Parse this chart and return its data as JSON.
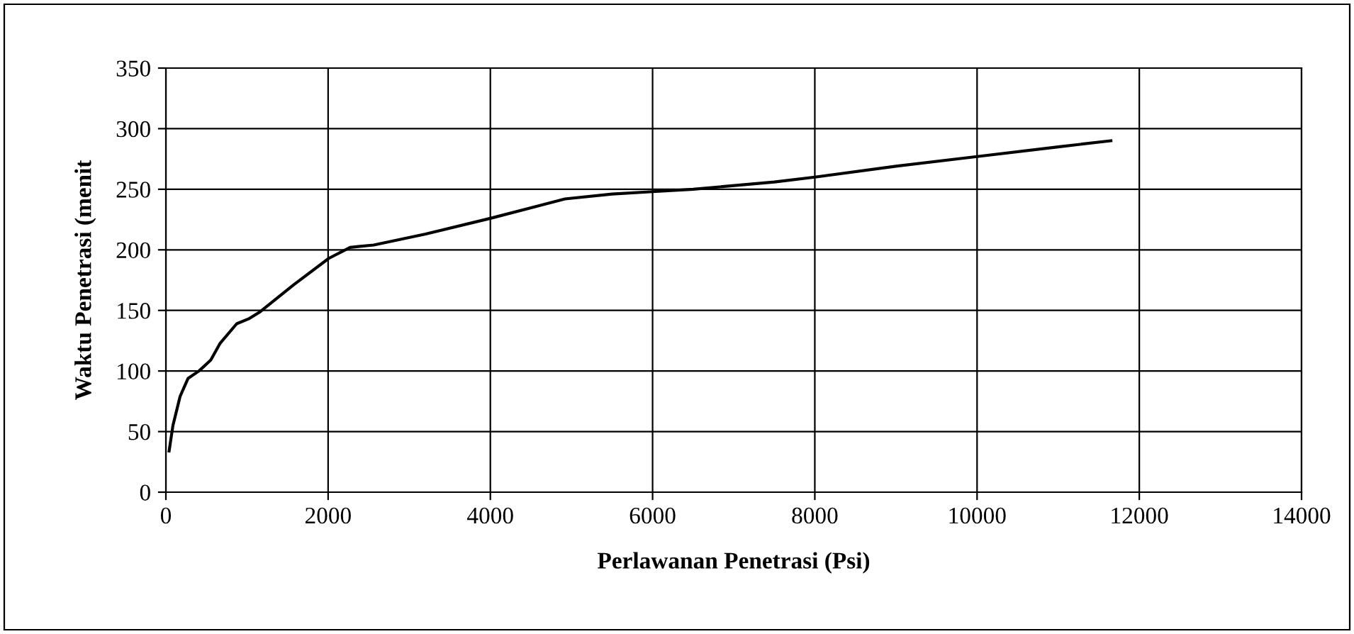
{
  "chart_data": {
    "type": "line",
    "xlabel": "Perlawanan Penetrasi (Psi)",
    "ylabel": "Waktu Penetrasi (menit",
    "series": [
      {
        "color": "#000000",
        "x": [
          40,
          87,
          175,
          274,
          408,
          553,
          670,
          873,
          1019,
          1164,
          1572,
          2009,
          2271,
          2562,
          3202,
          4000,
          4920,
          5500,
          6000,
          6500,
          7500,
          8000,
          9000,
          10000,
          11000,
          11650
        ],
        "values": [
          34,
          55,
          79,
          94,
          100,
          109,
          123,
          139,
          143,
          149,
          171,
          193,
          202,
          204,
          213,
          226,
          242,
          246,
          248,
          250,
          256,
          260,
          269,
          277,
          285,
          290
        ]
      }
    ],
    "xlim": [
      0,
      14000
    ],
    "xticks": [
      0,
      2000,
      4000,
      6000,
      8000,
      10000,
      12000,
      14000
    ],
    "ylim": [
      0,
      350
    ],
    "yticks": [
      0,
      50,
      100,
      150,
      200,
      250,
      300,
      350
    ],
    "grid": true,
    "marker": "none",
    "line_style": "solid"
  }
}
